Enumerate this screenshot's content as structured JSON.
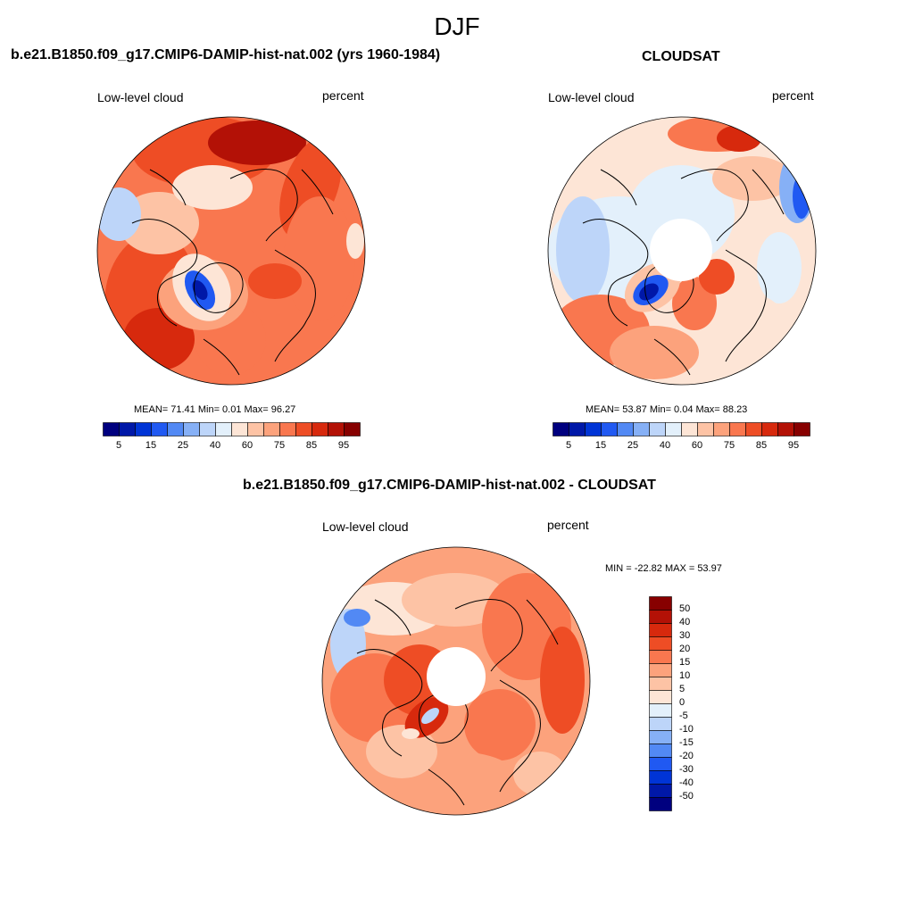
{
  "figure": {
    "season": "DJF"
  },
  "panels": [
    {
      "title": "b.e21.B1850.f09_g17.CMIP6-DAMIP-hist-nat.002 (yrs 1960-1984)",
      "left_label": "Low-level cloud",
      "right_label": "percent",
      "stats": "MEAN=  71.41  Min=   0.01  Max=  96.27"
    },
    {
      "title": "CLOUDSAT",
      "left_label": "Low-level cloud",
      "right_label": "percent",
      "stats": "MEAN=  53.87  Min=   0.04  Max=  88.23"
    },
    {
      "title": "b.e21.B1850.f09_g17.CMIP6-DAMIP-hist-nat.002 - CLOUDSAT",
      "left_label": "Low-level cloud",
      "right_label": "percent",
      "stats": "MIN = -22.82 MAX =  53.97"
    }
  ],
  "colorbar_main": {
    "colors": [
      "#00007f",
      "#0018a8",
      "#0034d6",
      "#2059f2",
      "#5289f4",
      "#86b0f6",
      "#bdd5f9",
      "#e3f0fb",
      "#fde5d6",
      "#fdc3a5",
      "#fca27c",
      "#f9774f",
      "#ee4d25",
      "#d7290d",
      "#b31106",
      "#870000"
    ],
    "tick_labels": [
      "5",
      "15",
      "25",
      "40",
      "60",
      "75",
      "85",
      "95"
    ]
  },
  "colorbar_diff": {
    "colors": [
      "#00007f",
      "#0018a8",
      "#0034d6",
      "#2059f2",
      "#5289f4",
      "#86b0f6",
      "#bdd5f9",
      "#e3f0fb",
      "#fde5d6",
      "#fdc3a5",
      "#fca27c",
      "#f9774f",
      "#ee4d25",
      "#d7290d",
      "#b31106",
      "#870000"
    ],
    "tick_labels": [
      "50",
      "40",
      "30",
      "20",
      "15",
      "10",
      "5",
      "0",
      "-5",
      "-10",
      "-15",
      "-20",
      "-30",
      "-40",
      "-50"
    ]
  }
}
